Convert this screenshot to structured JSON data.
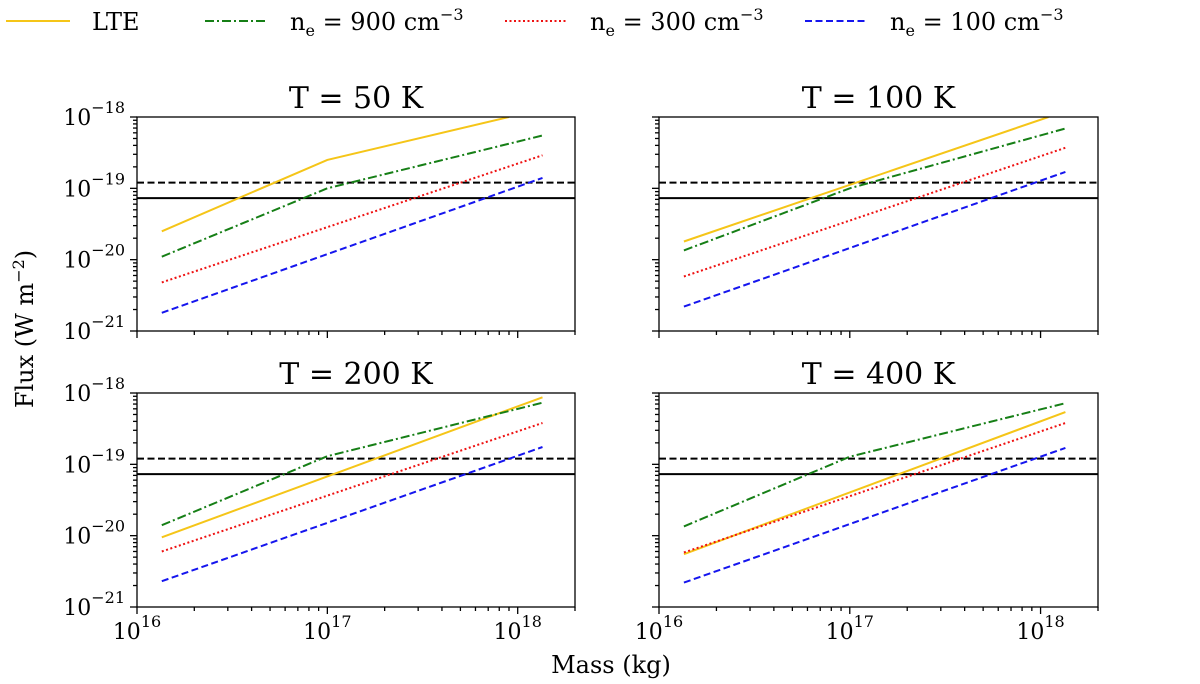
{
  "chart_data": {
    "type": "line",
    "xlabel": "Mass (kg)",
    "ylabel": "Flux (W m",
    "ylabel_sup": "−2",
    "ylabel_close": ")",
    "xscale": "log",
    "yscale": "log",
    "xlim": [
      1e+16,
      2e+18
    ],
    "ylim": [
      1e-21,
      1e-18
    ],
    "x_ticks": [
      {
        "value": 1e+16,
        "base": "10",
        "exp": "16"
      },
      {
        "value": 1e+17,
        "base": "10",
        "exp": "17"
      },
      {
        "value": 1e+18,
        "base": "10",
        "exp": "18"
      }
    ],
    "y_ticks": [
      {
        "value": 1e-18,
        "base": "10",
        "exp": "−18"
      },
      {
        "value": 1e-19,
        "base": "10",
        "exp": "−19"
      },
      {
        "value": 1e-20,
        "base": "10",
        "exp": "−20"
      },
      {
        "value": 1e-21,
        "base": "10",
        "exp": "−21"
      }
    ],
    "legend": [
      {
        "key": "lte",
        "label": "LTE",
        "color": "#f5c518",
        "dash": "solid"
      },
      {
        "key": "ne900",
        "label_pre": "n",
        "label_sub": "e",
        "label_mid": " = 900 cm",
        "label_sup": "−3",
        "color": "#167f16",
        "dash": "dashdot"
      },
      {
        "key": "ne300",
        "label_pre": "n",
        "label_sub": "e",
        "label_mid": " = 300 cm",
        "label_sup": "−3",
        "color": "#ee1111",
        "dash": "dotted"
      },
      {
        "key": "ne100",
        "label_pre": "n",
        "label_sub": "e",
        "label_mid": " = 100 cm",
        "label_sup": "−3",
        "color": "#1515ee",
        "dash": "dashed"
      }
    ],
    "reference_lines": [
      {
        "name": "dashed-threshold",
        "y": 1.2e-19,
        "color": "#000000",
        "dash": "dashed"
      },
      {
        "name": "solid-threshold",
        "y": 7.3e-20,
        "color": "#000000",
        "dash": "solid"
      }
    ],
    "panels": [
      {
        "title": "T = 50 K",
        "series": [
          {
            "key": "lte",
            "x": [
              1.35e+16,
              1e+17,
              9e+17
            ],
            "y": [
              2.5e-20,
              2.5e-19,
              1e-18
            ]
          },
          {
            "key": "ne900",
            "x": [
              1.35e+16,
              1e+17,
              1.35e+18
            ],
            "y": [
              1.1e-20,
              1e-19,
              5.5e-19
            ]
          },
          {
            "key": "ne300",
            "x": [
              1.35e+16,
              1.35e+18
            ],
            "y": [
              4.8e-21,
              2.9e-19
            ]
          },
          {
            "key": "ne100",
            "x": [
              1.35e+16,
              1.35e+18
            ],
            "y": [
              1.8e-21,
              1.4e-19
            ]
          }
        ]
      },
      {
        "title": "T = 100 K",
        "series": [
          {
            "key": "lte",
            "x": [
              1.35e+16,
              1.1e+18
            ],
            "y": [
              1.8e-20,
              1e-18
            ]
          },
          {
            "key": "ne900",
            "x": [
              1.35e+16,
              1e+17,
              1.35e+18
            ],
            "y": [
              1.35e-20,
              1e-19,
              6.9e-19
            ]
          },
          {
            "key": "ne300",
            "x": [
              1.35e+16,
              1.35e+18
            ],
            "y": [
              5.8e-21,
              3.7e-19
            ]
          },
          {
            "key": "ne100",
            "x": [
              1.35e+16,
              1.35e+18
            ],
            "y": [
              2.2e-21,
              1.7e-19
            ]
          }
        ]
      },
      {
        "title": "T = 200 K",
        "series": [
          {
            "key": "lte",
            "x": [
              1.35e+16,
              1.35e+18
            ],
            "y": [
              9.5e-21,
              8.7e-19
            ]
          },
          {
            "key": "ne900",
            "x": [
              1.35e+16,
              1e+17,
              1.35e+18
            ],
            "y": [
              1.4e-20,
              1.3e-19,
              7.3e-19
            ]
          },
          {
            "key": "ne300",
            "x": [
              1.35e+16,
              1.35e+18
            ],
            "y": [
              6e-21,
              3.8e-19
            ]
          },
          {
            "key": "ne100",
            "x": [
              1.35e+16,
              1.35e+18
            ],
            "y": [
              2.3e-21,
              1.75e-19
            ]
          }
        ]
      },
      {
        "title": "T = 400 K",
        "series": [
          {
            "key": "lte",
            "x": [
              1.35e+16,
              1.35e+18
            ],
            "y": [
              5.5e-21,
              5.4e-19
            ]
          },
          {
            "key": "ne900",
            "x": [
              1.35e+16,
              1e+17,
              1.35e+18
            ],
            "y": [
              1.35e-20,
              1.28e-19,
              7.2e-19
            ]
          },
          {
            "key": "ne300",
            "x": [
              1.35e+16,
              1.35e+18
            ],
            "y": [
              5.8e-21,
              3.8e-19
            ]
          },
          {
            "key": "ne100",
            "x": [
              1.35e+16,
              1.35e+18
            ],
            "y": [
              2.2e-21,
              1.7e-19
            ]
          }
        ]
      }
    ]
  }
}
